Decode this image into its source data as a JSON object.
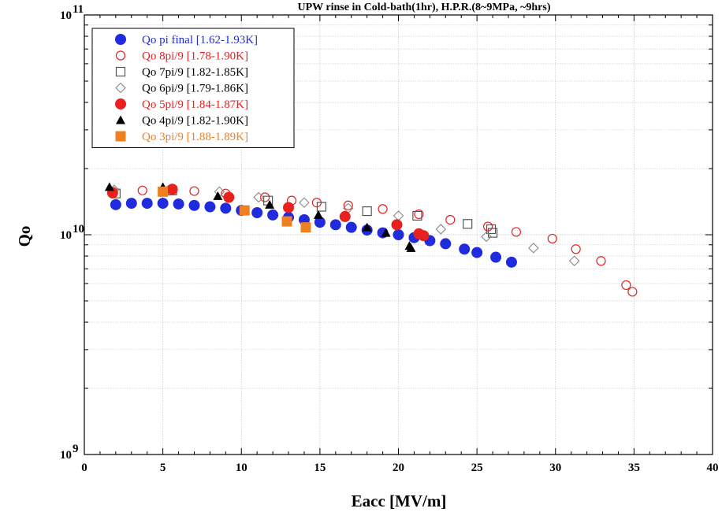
{
  "chart_data": {
    "type": "scatter",
    "title": "UPW rinse in Cold-bath(1hr), H.P.R.(8~9MPa, ~9hrs)",
    "xlabel": "Eacc [MV/m]",
    "ylabel": "Qo",
    "xlim": [
      0,
      40
    ],
    "ylim": [
      1000000000,
      100000000000
    ],
    "y_scale": "log",
    "x_ticks": [
      "0",
      "5",
      "10",
      "15",
      "20",
      "25",
      "30",
      "35",
      "40"
    ],
    "y_ticks": [
      {
        "value": 1000000000,
        "base": "10",
        "exp": "9"
      },
      {
        "value": 10000000000,
        "base": "10",
        "exp": "10"
      },
      {
        "value": 100000000000,
        "base": "10",
        "exp": "11"
      }
    ],
    "grid": true,
    "legend_position": "top-left",
    "series": [
      {
        "name": "Qo pi final [1.62-1.93K]",
        "color": "#1f2bdc",
        "marker": "filled-circle",
        "points": [
          [
            2.0,
            13700000000.0
          ],
          [
            3.0,
            13900000000.0
          ],
          [
            4.0,
            13900000000.0
          ],
          [
            5.0,
            13900000000.0
          ],
          [
            6.0,
            13800000000.0
          ],
          [
            7.0,
            13600000000.0
          ],
          [
            8.0,
            13400000000.0
          ],
          [
            9.0,
            13200000000.0
          ],
          [
            10.0,
            12900000000.0
          ],
          [
            11.0,
            12600000000.0
          ],
          [
            12.0,
            12300000000.0
          ],
          [
            13.0,
            12000000000.0
          ],
          [
            14.0,
            11700000000.0
          ],
          [
            15.0,
            11400000000.0
          ],
          [
            16.0,
            11100000000.0
          ],
          [
            17.0,
            10800000000.0
          ],
          [
            18.0,
            10500000000.0
          ],
          [
            19.0,
            10200000000.0
          ],
          [
            20.0,
            10000000000.0
          ],
          [
            21.0,
            9700000000.0
          ],
          [
            22.0,
            9400000000.0
          ],
          [
            23.0,
            9100000000.0
          ],
          [
            24.2,
            8600000000.0
          ],
          [
            25.0,
            8300000000.0
          ],
          [
            26.2,
            7900000000.0
          ],
          [
            27.2,
            7500000000.0
          ]
        ]
      },
      {
        "name": "Qo 8pi/9 [1.78-1.90K]",
        "color": "#e8201e",
        "marker": "open-circle",
        "points": [
          [
            1.8,
            15700000000.0
          ],
          [
            3.7,
            15900000000.0
          ],
          [
            5.4,
            15900000000.0
          ],
          [
            7.0,
            15800000000.0
          ],
          [
            9.0,
            15400000000.0
          ],
          [
            11.5,
            14800000000.0
          ],
          [
            13.2,
            14300000000.0
          ],
          [
            14.8,
            14000000000.0
          ],
          [
            16.8,
            13600000000.0
          ],
          [
            19.0,
            13100000000.0
          ],
          [
            21.3,
            12400000000.0
          ],
          [
            23.3,
            11700000000.0
          ],
          [
            25.7,
            10900000000.0
          ],
          [
            27.5,
            10300000000.0
          ],
          [
            29.8,
            9600000000.0
          ],
          [
            31.3,
            8600000000.0
          ],
          [
            32.9,
            7600000000.0
          ],
          [
            34.5,
            5900000000.0
          ],
          [
            34.9,
            5500000000.0
          ]
        ]
      },
      {
        "name": "Qo 7pi/9 [1.82-1.85K]",
        "color": "#555555",
        "marker": "open-square",
        "points": [
          [
            2.0,
            15400000000.0
          ],
          [
            5.6,
            15900000000.0
          ],
          [
            11.7,
            14300000000.0
          ],
          [
            15.1,
            13400000000.0
          ],
          [
            18.0,
            12800000000.0
          ],
          [
            21.2,
            12200000000.0
          ],
          [
            24.4,
            11200000000.0
          ],
          [
            25.9,
            10600000000.0
          ],
          [
            26.0,
            10200000000.0
          ]
        ]
      },
      {
        "name": "Qo 6pi/9 [1.79-1.86K]",
        "color": "#888888",
        "marker": "open-diamond",
        "points": [
          [
            1.9,
            16000000000.0
          ],
          [
            8.6,
            15700000000.0
          ],
          [
            11.1,
            14800000000.0
          ],
          [
            14.0,
            14000000000.0
          ],
          [
            16.8,
            13200000000.0
          ],
          [
            20.0,
            12200000000.0
          ],
          [
            22.7,
            10600000000.0
          ],
          [
            25.6,
            9800000000.0
          ],
          [
            28.6,
            8700000000.0
          ],
          [
            31.2,
            7600000000.0
          ]
        ]
      },
      {
        "name": "Qo 5pi/9 [1.84-1.87K]",
        "color": "#e8201e",
        "marker": "filled-circle",
        "points": [
          [
            1.8,
            15500000000.0
          ],
          [
            5.6,
            16100000000.0
          ],
          [
            9.2,
            14800000000.0
          ],
          [
            13.0,
            13300000000.0
          ],
          [
            16.6,
            12100000000.0
          ],
          [
            19.9,
            11100000000.0
          ],
          [
            21.3,
            10100000000.0
          ],
          [
            21.6,
            9900000000.0
          ]
        ]
      },
      {
        "name": "Qo 4pi/9 [1.82-1.90K]",
        "color": "#000000",
        "marker": "filled-triangle",
        "points": [
          [
            1.6,
            16500000000.0
          ],
          [
            5.0,
            16500000000.0
          ],
          [
            8.5,
            15000000000.0
          ],
          [
            11.8,
            13700000000.0
          ],
          [
            14.9,
            12300000000.0
          ],
          [
            18.0,
            10800000000.0
          ],
          [
            19.2,
            10200000000.0
          ],
          [
            20.7,
            8900000000.0
          ],
          [
            20.8,
            8700000000.0
          ]
        ]
      },
      {
        "name": "Qo 3pi/9 [1.88-1.89K]",
        "color": "#f07f22",
        "marker": "filled-square",
        "points": [
          [
            5.0,
            15700000000.0
          ],
          [
            10.2,
            12900000000.0
          ],
          [
            12.9,
            11500000000.0
          ],
          [
            14.1,
            10800000000.0
          ]
        ]
      }
    ]
  }
}
